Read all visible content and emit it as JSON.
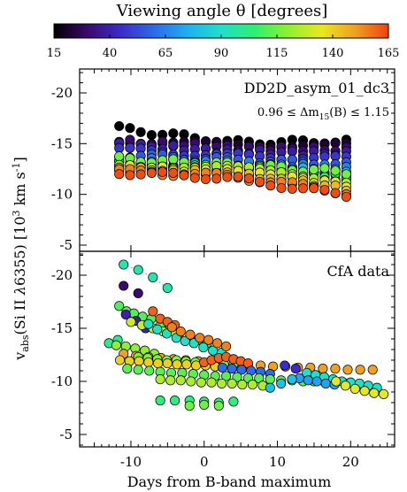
{
  "colorbar": {
    "title": "Viewing angle θ   [degrees]",
    "ticks": [
      "15",
      "40",
      "65",
      "90",
      "115",
      "140",
      "165"
    ],
    "range": [
      15,
      165
    ],
    "stops": [
      "#000000",
      "#3b0a6e",
      "#3b2cc8",
      "#2d6be8",
      "#1fb0f0",
      "#1fe0c8",
      "#2ef070",
      "#8ef030",
      "#e8e820",
      "#f0a020",
      "#f04010"
    ]
  },
  "axes": {
    "xlabel": "Days from B-band maximum",
    "ylabel": "v_abs(Si II λ6355)  [10³ km s⁻¹]",
    "ylabel_parts": {
      "v": "v",
      "sub": "abs",
      "ion": "(Si II ",
      "lambda": "λ",
      "wave": "6355)",
      "unit": "[10",
      "exp3": "3",
      "unit2": " km s",
      "expm1": "-1",
      "close": "]"
    },
    "xlim": [
      -17,
      26
    ],
    "xticks": [
      "-10",
      "0",
      "10",
      "20"
    ],
    "xtick_values": [
      -10,
      0,
      10,
      20
    ],
    "ylim_panel": [
      -3.5,
      -22.5
    ],
    "yticks": [
      "-20",
      "-15",
      "-10",
      "-5"
    ],
    "ytick_values": [
      -20,
      -15,
      -10,
      -5
    ]
  },
  "chart_data": [
    {
      "type": "scatter",
      "panel": "top",
      "title": "DD2D_asym_01_dc3",
      "annotation": "0.96 ≤ Δm₁₅(B) ≤ 1.15",
      "annotation_parts": {
        "pre": "0.96 ≤ Δm",
        "sub": "15",
        "post": "(B) ≤ 1.15"
      },
      "x_range": [
        -11.6,
        19.4
      ],
      "series": [
        {
          "angle": 15,
          "v_start": -16.5,
          "v_mid": -15.1,
          "v_end": -15.2
        },
        {
          "angle": 22,
          "v_start": -15.3,
          "v_mid": -14.9,
          "v_end": -14.8
        },
        {
          "angle": 30,
          "v_start": -15.2,
          "v_mid": -14.6,
          "v_end": -14.4
        },
        {
          "angle": 38,
          "v_start": -14.9,
          "v_mid": -14.2,
          "v_end": -14.0
        },
        {
          "angle": 47,
          "v_start": -14.4,
          "v_mid": -13.8,
          "v_end": -13.5
        },
        {
          "angle": 56,
          "v_start": -13.9,
          "v_mid": -13.4,
          "v_end": -13.0
        },
        {
          "angle": 65,
          "v_start": -13.4,
          "v_mid": -13.1,
          "v_end": -12.6
        },
        {
          "angle": 75,
          "v_start": -13.1,
          "v_mid": -12.8,
          "v_end": -12.2
        },
        {
          "angle": 85,
          "v_start": -12.8,
          "v_mid": -12.5,
          "v_end": -11.9
        },
        {
          "angle": 95,
          "v_start": -12.6,
          "v_mid": -12.3,
          "v_end": -11.6
        },
        {
          "angle": 105,
          "v_start": -13.2,
          "v_mid": -12.5,
          "v_end": -11.8
        },
        {
          "angle": 115,
          "v_start": -13.5,
          "v_mid": -12.9,
          "v_end": -12.2
        },
        {
          "angle": 125,
          "v_start": -13.0,
          "v_mid": -12.6,
          "v_end": -11.4
        },
        {
          "angle": 135,
          "v_start": -12.7,
          "v_mid": -12.3,
          "v_end": -11.0
        },
        {
          "angle": 145,
          "v_start": -12.5,
          "v_mid": -12.0,
          "v_end": -10.6
        },
        {
          "angle": 155,
          "v_start": -12.3,
          "v_mid": -11.8,
          "v_end": -10.2
        },
        {
          "angle": 163,
          "v_start": -12.2,
          "v_mid": -11.6,
          "v_end": -9.9
        }
      ]
    },
    {
      "type": "scatter",
      "panel": "bottom",
      "title": "CfA data",
      "series": [
        {
          "angle": 95,
          "x": [
            -11,
            -9,
            -7,
            -5
          ],
          "y": [
            -21.0,
            -20.5,
            -19.8,
            -18.8
          ],
          "dotted": true
        },
        {
          "angle": 30,
          "x": [
            -11,
            -9
          ],
          "y": [
            -19.0,
            -18.3
          ]
        },
        {
          "angle": 110,
          "x": [
            -11.6,
            -10.6,
            -9.6,
            -8.4,
            -7.2,
            -5.9,
            -4.6,
            -3.3,
            -2,
            -0.8,
            0.4
          ],
          "y": [
            -17.1,
            -16.6,
            -16.4,
            -16.1,
            -15.9,
            -15.4,
            -15.1,
            -14.6,
            -14.1,
            -13.9,
            -13.6
          ]
        },
        {
          "angle": 40,
          "x": [
            -10.7,
            -9.3,
            -8
          ],
          "y": [
            -16.3,
            -15.7,
            -15.0
          ]
        },
        {
          "angle": 130,
          "x": [
            -10,
            -8.5,
            -7,
            -5.6,
            -4
          ],
          "y": [
            -15.6,
            -15.3,
            -15.0,
            -14.7,
            -14.6
          ],
          "dotted": true
        },
        {
          "angle": 160,
          "x": [
            -7,
            -6,
            -5,
            -4
          ],
          "y": [
            -16.6,
            -15.9,
            -15.6,
            -15.3
          ]
        },
        {
          "angle": 90,
          "x": [
            -7.6,
            -6.4,
            -5.1,
            -3.8,
            -2.6,
            -1.4,
            -0.1,
            1.2,
            2.4
          ],
          "y": [
            -15.4,
            -14.9,
            -14.5,
            -14.1,
            -13.8,
            -13.6,
            -13.2,
            -12.9,
            -12.7
          ],
          "dotted": true
        },
        {
          "angle": 155,
          "x": [
            -4.4,
            -3.2,
            -1.9,
            -0.6,
            0.6,
            1.8,
            3
          ],
          "y": [
            -15.1,
            -14.7,
            -14.4,
            -14.1,
            -13.9,
            -13.6,
            -13.3
          ],
          "dotted": true
        },
        {
          "angle": 100,
          "x": [
            -13,
            -11.8
          ],
          "y": [
            -13.6,
            -13.9
          ]
        },
        {
          "angle": 120,
          "x": [
            -12,
            -10.7,
            -9.4,
            -8.1,
            -6.8
          ],
          "y": [
            -13.4,
            -13.3,
            -13.1,
            -12.9,
            -12.6
          ]
        },
        {
          "angle": 150,
          "x": [
            -11,
            -9.3,
            -7.6,
            -5.9,
            -4.2,
            -2.5,
            -0.8,
            0.9,
            2.6,
            4.3,
            6,
            7.7,
            9.4,
            11.1,
            12.8,
            14.5,
            16.2,
            17.9,
            19.6,
            21.3,
            23
          ],
          "y": [
            -12.6,
            -12.4,
            -12.3,
            -12.2,
            -12.1,
            -12.0,
            -11.9,
            -11.8,
            -11.7,
            -11.7,
            -11.6,
            -11.5,
            -11.4,
            -11.4,
            -11.3,
            -11.3,
            -11.2,
            -11.2,
            -11.1,
            -11.1,
            -11.1
          ]
        },
        {
          "angle": 118,
          "x": [
            -9,
            -7.7,
            -6.4,
            -5.1,
            -3.8,
            -2.5,
            -1.2,
            0.1,
            1.4,
            2.7,
            4
          ],
          "y": [
            -12.3,
            -12.2,
            -12.1,
            -12.0,
            -12.0,
            -11.9,
            -11.8,
            -11.7,
            -11.7,
            -11.6,
            -11.6
          ]
        },
        {
          "angle": 140,
          "x": [
            -11.5,
            -10.2,
            -8.9,
            -7.6,
            -6.3,
            -5,
            -3.7,
            -2.4,
            -1.1,
            0.2,
            1.5
          ],
          "y": [
            -12.0,
            -11.9,
            -11.9,
            -11.8,
            -11.7,
            -11.7,
            -11.6,
            -11.6,
            -11.5,
            -11.5,
            -11.4
          ]
        },
        {
          "angle": 160,
          "x": [
            0,
            1,
            2,
            3,
            4,
            5,
            6
          ],
          "y": [
            -11.8,
            -12.0,
            -12.2,
            -12.3,
            -12.1,
            -11.9,
            -11.7
          ]
        },
        {
          "angle": 60,
          "x": [
            2.5,
            3.8,
            5.1,
            6.4,
            7.7,
            9
          ],
          "y": [
            -11.3,
            -11.2,
            -11.1,
            -11.0,
            -10.9,
            -10.7
          ]
        },
        {
          "angle": 45,
          "x": [
            11,
            12.5
          ],
          "y": [
            -11.5,
            -11.2
          ]
        },
        {
          "angle": 112,
          "x": [
            -10.5,
            -9,
            -7.5,
            -6,
            -4.5,
            -3,
            -1.5,
            0,
            1.5,
            3,
            4.5,
            6,
            7.5,
            9,
            10.5,
            12,
            13.5,
            15,
            16.5,
            18,
            19.5
          ],
          "y": [
            -11.2,
            -11.1,
            -11.0,
            -10.9,
            -10.8,
            -10.8,
            -10.7,
            -10.6,
            -10.5,
            -10.5,
            -10.4,
            -10.3,
            -10.3,
            -10.2,
            -10.1,
            -10.1,
            -10.0,
            -10.0,
            -9.9,
            -9.9,
            -9.8
          ]
        },
        {
          "angle": 90,
          "x": [
            14,
            15.2,
            16.4,
            17.6,
            18.8,
            20,
            21.2,
            22.4,
            23.6
          ],
          "y": [
            -10.8,
            -10.6,
            -10.4,
            -10.2,
            -10.0,
            -9.9,
            -9.8,
            -9.6,
            -9.4
          ],
          "dotted": true
        },
        {
          "angle": 72,
          "x": [
            13,
            14.2,
            15.4,
            16.6,
            17.8
          ],
          "y": [
            -10.3,
            -10.1,
            -10.0,
            -9.8,
            -9.7
          ]
        },
        {
          "angle": 125,
          "x": [
            -6,
            -4.6,
            -3.2,
            -1.8,
            -0.4,
            1,
            2.4,
            3.8,
            5.2,
            6.6,
            8
          ],
          "y": [
            -10.2,
            -10.1,
            -10.1,
            -10.0,
            -9.9,
            -9.9,
            -9.8,
            -9.8,
            -9.7,
            -9.7,
            -9.6
          ]
        },
        {
          "angle": 135,
          "x": [
            18,
            19.3,
            20.6,
            21.9,
            23.2,
            24.5
          ],
          "y": [
            -10.0,
            -9.6,
            -9.3,
            -9.1,
            -8.9,
            -8.8
          ]
        },
        {
          "angle": 80,
          "x": [
            9,
            10.5,
            12
          ],
          "y": [
            -9.4,
            -9.8,
            -10.2
          ]
        },
        {
          "angle": 103,
          "x": [
            -6,
            -4,
            -2,
            0,
            2,
            4
          ],
          "y": [
            -8.2,
            -8.2,
            -8.2,
            -8.1,
            -8.0,
            -8.1
          ]
        },
        {
          "angle": 115,
          "x": [
            -2,
            0,
            2
          ],
          "y": [
            -7.7,
            -7.8,
            -7.7
          ]
        }
      ]
    }
  ]
}
